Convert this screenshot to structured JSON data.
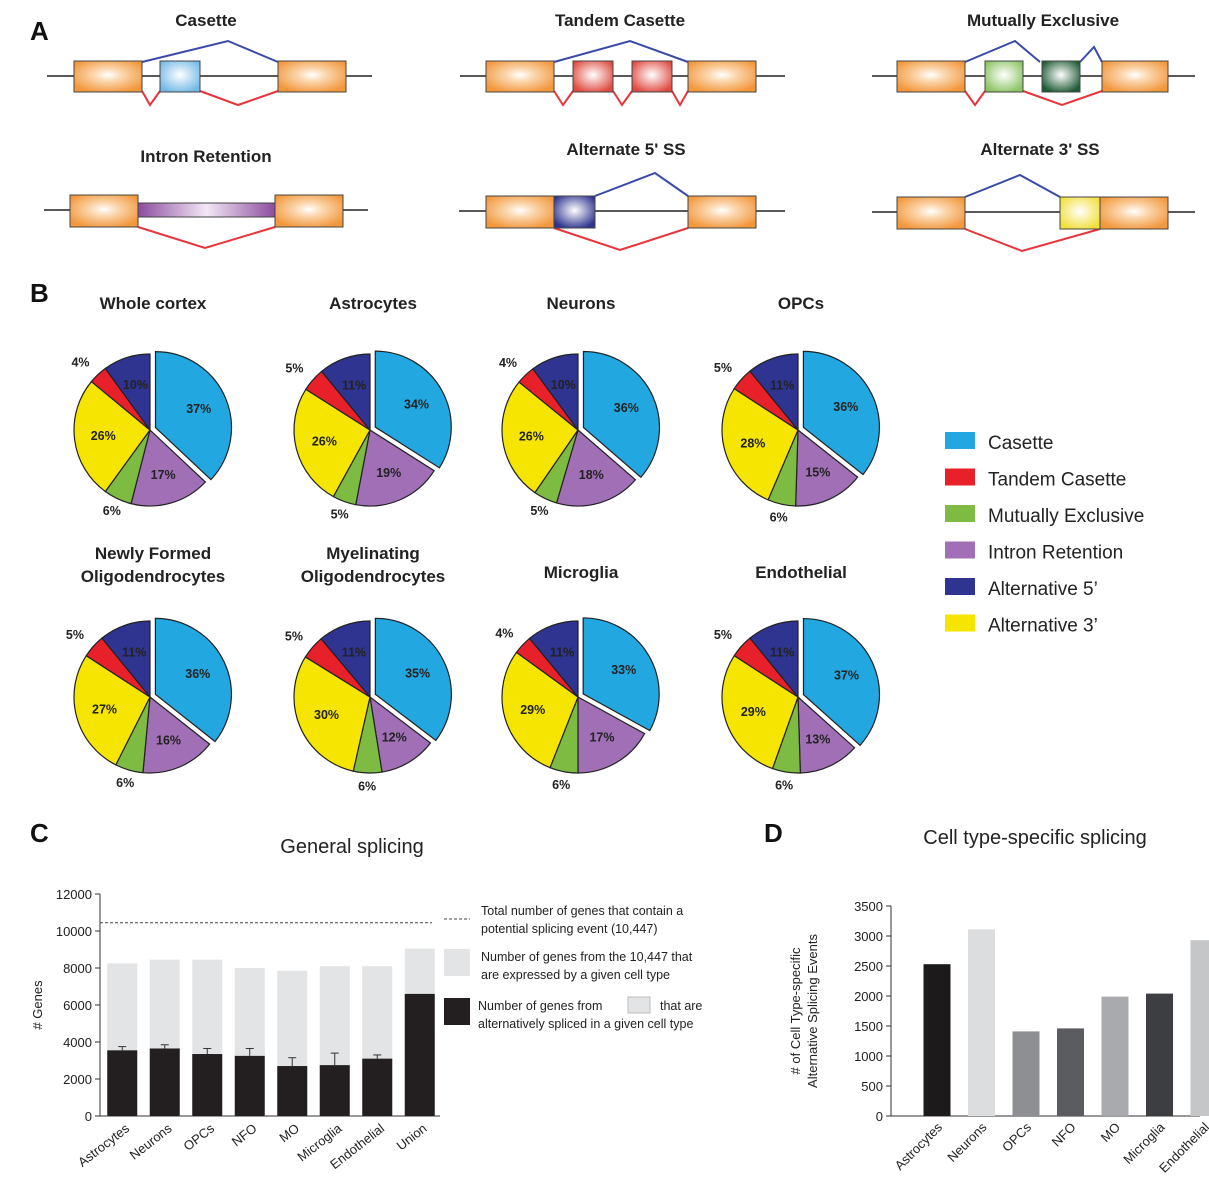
{
  "panels": {
    "a": "A",
    "b": "B",
    "c": "C",
    "d": "D"
  },
  "splice_types": [
    "Casette",
    "Tandem Casette",
    "Mutually Exclusive",
    "Intron Retention",
    "Alternate 5' SS",
    "Alternate 3' SS"
  ],
  "legend": [
    {
      "label": "Casette",
      "color": "#22a7e0"
    },
    {
      "label": "Tandem Casette",
      "color": "#e8202a"
    },
    {
      "label": "Mutually Exclusive",
      "color": "#7dbb42"
    },
    {
      "label": "Intron Retention",
      "color": "#a06fb5"
    },
    {
      "label": "Alternative 5’",
      "color": "#2e3490"
    },
    {
      "label": "Alternative 3’",
      "color": "#f6e500"
    }
  ],
  "chart_data": [
    {
      "type": "pie",
      "categories": [
        "Casette",
        "Intron Retention",
        "Mutually Exclusive",
        "Alternative 3’",
        "Tandem Casette",
        "Alternative 5’"
      ],
      "pies": [
        {
          "title": [
            "Whole cortex"
          ],
          "values": [
            37,
            17,
            6,
            26,
            4,
            10
          ]
        },
        {
          "title": [
            "Astrocytes"
          ],
          "values": [
            34,
            19,
            5,
            26,
            5,
            11
          ]
        },
        {
          "title": [
            "Neurons"
          ],
          "values": [
            36,
            18,
            5,
            26,
            4,
            10
          ]
        },
        {
          "title": [
            "OPCs"
          ],
          "values": [
            36,
            15,
            6,
            28,
            5,
            11
          ]
        },
        {
          "title": [
            "Newly Formed",
            "Oligodendrocytes"
          ],
          "values": [
            36,
            16,
            6,
            27,
            5,
            11
          ]
        },
        {
          "title": [
            "Myelinating",
            "Oligodendrocytes"
          ],
          "values": [
            35,
            12,
            6,
            30,
            5,
            11
          ]
        },
        {
          "title": [
            "Microglia"
          ],
          "values": [
            33,
            17,
            6,
            29,
            4,
            11
          ]
        },
        {
          "title": [
            "Endothelial"
          ],
          "values": [
            37,
            13,
            6,
            29,
            5,
            11
          ]
        }
      ]
    },
    {
      "type": "bar",
      "title": "General splicing",
      "ylabel": "# Genes",
      "ylim": [
        0,
        12000
      ],
      "yticks": [
        0,
        2000,
        4000,
        6000,
        8000,
        10000,
        12000
      ],
      "categories": [
        "Astrocytes",
        "Neurons",
        "OPCs",
        "NFO",
        "MO",
        "Microglia",
        "Endothelial",
        "Union"
      ],
      "series": [
        {
          "name": "Number of genes from the 10,447 that are expressed by a given cell type",
          "values": [
            8250,
            8450,
            8450,
            8000,
            7850,
            8100,
            8100,
            9050
          ],
          "color": "#e3e4e6"
        },
        {
          "name": "Number of genes from that are alternatively spliced in a given cell type",
          "values": [
            3550,
            3650,
            3350,
            3250,
            2700,
            2750,
            3100,
            6600
          ],
          "errors": [
            200,
            200,
            300,
            400,
            450,
            650,
            200,
            0
          ],
          "color": "#231f20"
        }
      ],
      "reference_line": {
        "value": 10447,
        "label": "Total number of genes that contain a potential splicing event (10,447)"
      },
      "legend_lines": [
        [
          "Total number of genes that contain a",
          "potential splicing event (10,447)"
        ],
        [
          "Number of genes from the 10,447 that",
          "are expressed by a given cell type"
        ],
        [
          "Number of genes from",
          "that are",
          "alternatively spliced in a given cell type"
        ]
      ]
    },
    {
      "type": "bar",
      "title": "Cell type-specific splicing",
      "ylabel": [
        "# of Cell Type-specific",
        "Alternative Splicing Events"
      ],
      "ylim": [
        0,
        3500
      ],
      "yticks": [
        0,
        500,
        1000,
        1500,
        2000,
        2500,
        3000,
        3500
      ],
      "categories": [
        "Astrocytes",
        "Neurons",
        "OPCs",
        "NFO",
        "MO",
        "Microglia",
        "Endothelial"
      ],
      "values": [
        2530,
        3110,
        1410,
        1460,
        1990,
        2040,
        2930
      ],
      "colors": [
        "#1c1a1b",
        "#dcdddf",
        "#8e8f92",
        "#5b5c60",
        "#a9aaad",
        "#3d3e42",
        "#c5c6c8"
      ]
    }
  ]
}
